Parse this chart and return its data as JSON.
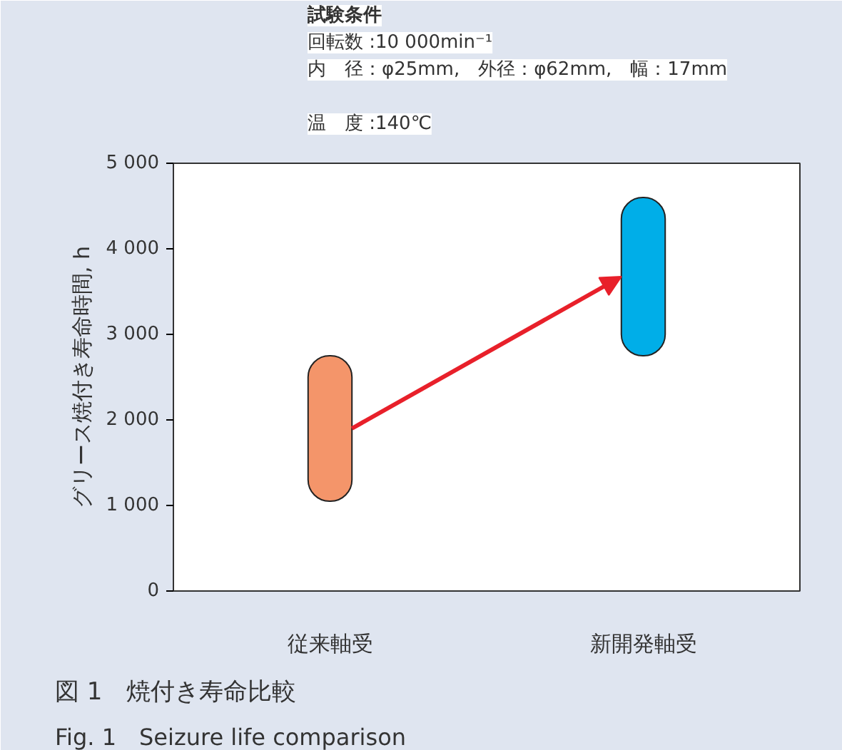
{
  "chart_data": {
    "type": "bar",
    "title": "図 1　焼付き寿命比較",
    "subtitle": "Fig. 1　Seizure life comparison",
    "ylabel": "グリース焼付き寿命時間, h",
    "annotations": [
      "試験条件",
      "回転数 :10 000min⁻¹",
      "内　径：φ25mm,　外径：φ62mm,　幅：17mm",
      "温　度 :140℃"
    ],
    "categories": [
      "従来軸受",
      "新開発軸受"
    ],
    "base": [
      1050,
      2750
    ],
    "values": [
      1700,
      1850
    ],
    "colors": [
      "#f4956a",
      "#00aee8"
    ],
    "ylim": [
      0,
      5000
    ],
    "yticks": [
      {
        "value": 0,
        "label": "0"
      },
      {
        "value": 1000,
        "label": "1 000"
      },
      {
        "value": 2000,
        "label": "2 000"
      },
      {
        "value": 3000,
        "label": "3 000"
      },
      {
        "value": 4000,
        "label": "4 000"
      },
      {
        "value": 5000,
        "label": "5 000"
      }
    ],
    "grid": false
  }
}
